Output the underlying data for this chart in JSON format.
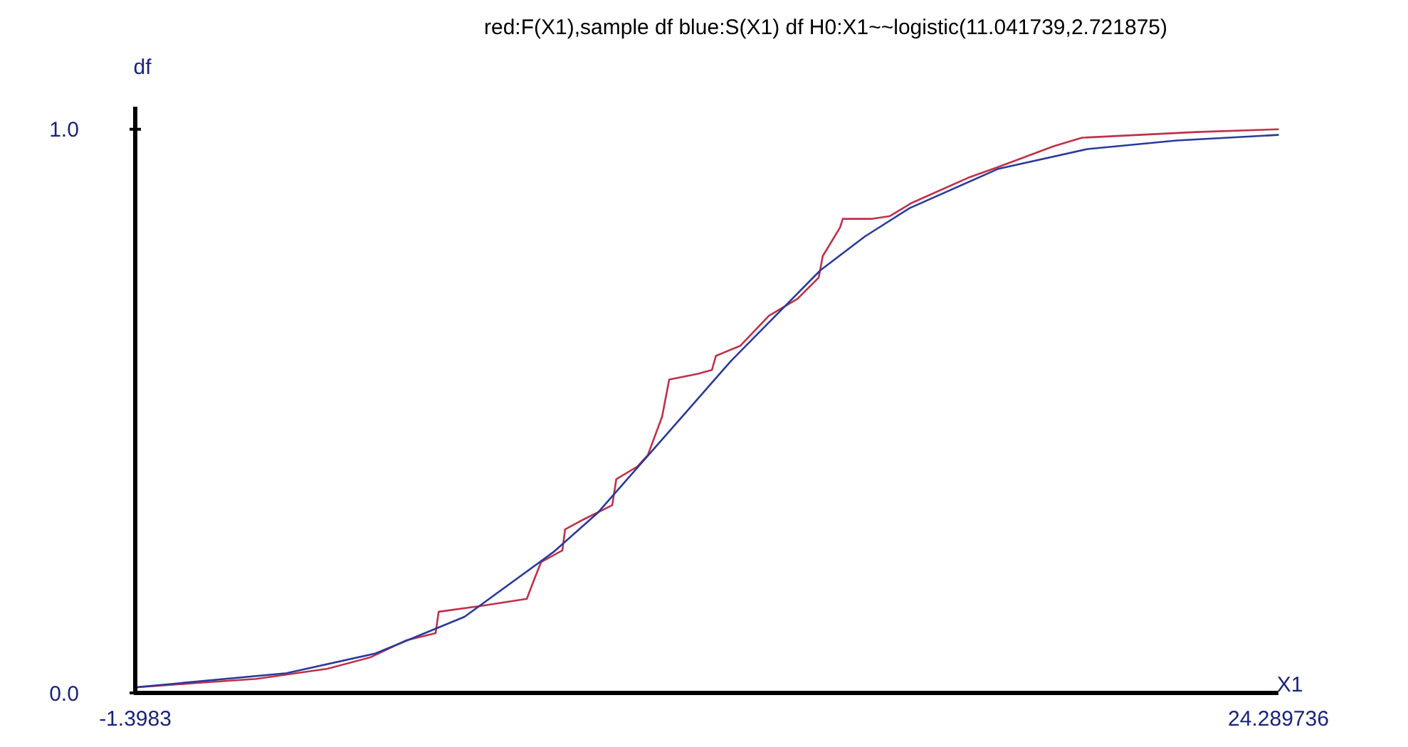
{
  "chart_data": {
    "type": "line",
    "title": "red:F(X1),sample df  blue:S(X1) df H0:X1~~logistic(11.041739,2.721875)",
    "xlabel": "X1",
    "ylabel": "df",
    "xlim": [
      -1.3983,
      24.289736
    ],
    "ylim": [
      0,
      1.04
    ],
    "xticks": [
      {
        "value": -1.3983,
        "label": "-1.3983"
      },
      {
        "value": 24.289736,
        "label": "24.289736"
      }
    ],
    "yticks": [
      {
        "value": 0,
        "label": "0.0"
      },
      {
        "value": 1,
        "label": "1.0"
      }
    ],
    "grid": false,
    "marker": "none",
    "line_style": "solid",
    "series": [
      {
        "color": "#c0304a",
        "x": [
          -1.34,
          0.04,
          1.32,
          2.92,
          3.88,
          4.68,
          5.35,
          5.42,
          6.34,
          7.4,
          7.56,
          7.72,
          8.2,
          8.26,
          8.68,
          9.32,
          9.41,
          9.89,
          10.12,
          10.44,
          10.6,
          11.24,
          11.56,
          11.65,
          12.2,
          12.84,
          13.48,
          13.96,
          14.05,
          14.44,
          14.5,
          15.14,
          15.56,
          16.04,
          17.32,
          17.96,
          19.24,
          19.88,
          21.15,
          22.43,
          24.28
        ],
        "values": [
          0.01,
          0.018,
          0.025,
          0.043,
          0.063,
          0.093,
          0.106,
          0.144,
          0.154,
          0.167,
          0.2,
          0.232,
          0.253,
          0.29,
          0.308,
          0.333,
          0.379,
          0.402,
          0.422,
          0.49,
          0.556,
          0.566,
          0.573,
          0.598,
          0.616,
          0.669,
          0.699,
          0.737,
          0.775,
          0.826,
          0.841,
          0.841,
          0.846,
          0.869,
          0.914,
          0.932,
          0.97,
          0.985,
          0.99,
          0.995,
          1.0
        ]
      },
      {
        "color": "#2a3a9a",
        "x": [
          -1.39,
          2,
          4,
          6,
          8,
          9,
          10,
          11,
          12,
          13,
          14,
          15,
          16,
          18,
          20,
          22,
          24.28
        ],
        "values": [
          0.01,
          0.035,
          0.07,
          0.135,
          0.25,
          0.32,
          0.41,
          0.5,
          0.59,
          0.67,
          0.75,
          0.81,
          0.86,
          0.93,
          0.965,
          0.98,
          0.99
        ]
      }
    ]
  }
}
